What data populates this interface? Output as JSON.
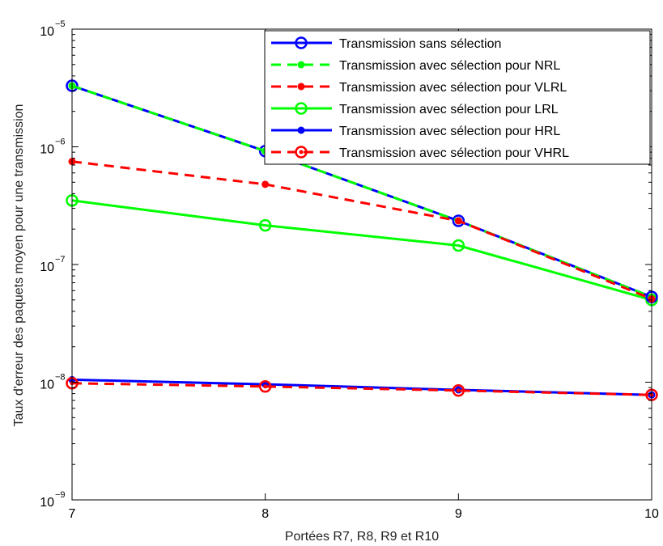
{
  "chart_data": {
    "type": "line",
    "xlabel": "Portées R7, R8, R9 et R10",
    "ylabel": "Taux d'erreur des paquets moyen pour une transmission",
    "xlim": [
      7,
      10
    ],
    "ylim": [
      1e-09,
      1e-05
    ],
    "yscale": "log",
    "x": [
      7,
      8,
      9,
      10
    ],
    "x_ticks": [
      "7",
      "8",
      "9",
      "10"
    ],
    "y_ticks": [
      {
        "base": "10",
        "exp": "−9"
      },
      {
        "base": "10",
        "exp": "−8"
      },
      {
        "base": "10",
        "exp": "−7"
      },
      {
        "base": "10",
        "exp": "−6"
      },
      {
        "base": "10",
        "exp": "−5"
      }
    ],
    "legend_position": "top-right",
    "series": [
      {
        "name": "Transmission sans sélection",
        "values": [
          3.3e-06,
          9.2e-07,
          2.35e-07,
          5.3e-08
        ],
        "color": "#0000ff",
        "dash": "solid",
        "marker": "open-circle"
      },
      {
        "name": "Transmission avec sélection pour NRL",
        "values": [
          3.3e-06,
          9.2e-07,
          2.35e-07,
          5.3e-08
        ],
        "color": "#00ff00",
        "dash": "dashed",
        "marker": "dot"
      },
      {
        "name": "Transmission avec sélection pour VLRL",
        "values": [
          7.5e-07,
          4.8e-07,
          2.35e-07,
          5.1e-08
        ],
        "color": "#ff0000",
        "dash": "dashed",
        "marker": "dot"
      },
      {
        "name": "Transmission avec sélection pour LRL",
        "values": [
          3.5e-07,
          2.15e-07,
          1.45e-07,
          5e-08
        ],
        "color": "#00ff00",
        "dash": "solid",
        "marker": "open-circle"
      },
      {
        "name": "Transmission avec sélection pour HRL",
        "values": [
          1.05e-08,
          9.6e-09,
          8.6e-09,
          7.8e-09
        ],
        "color": "#0000ff",
        "dash": "solid",
        "marker": "dot"
      },
      {
        "name": "Transmission avec sélection pour VHRL",
        "values": [
          9.8e-09,
          9.2e-09,
          8.5e-09,
          7.8e-09
        ],
        "color": "#ff0000",
        "dash": "dashed",
        "marker": "open-circle-dot"
      }
    ]
  }
}
